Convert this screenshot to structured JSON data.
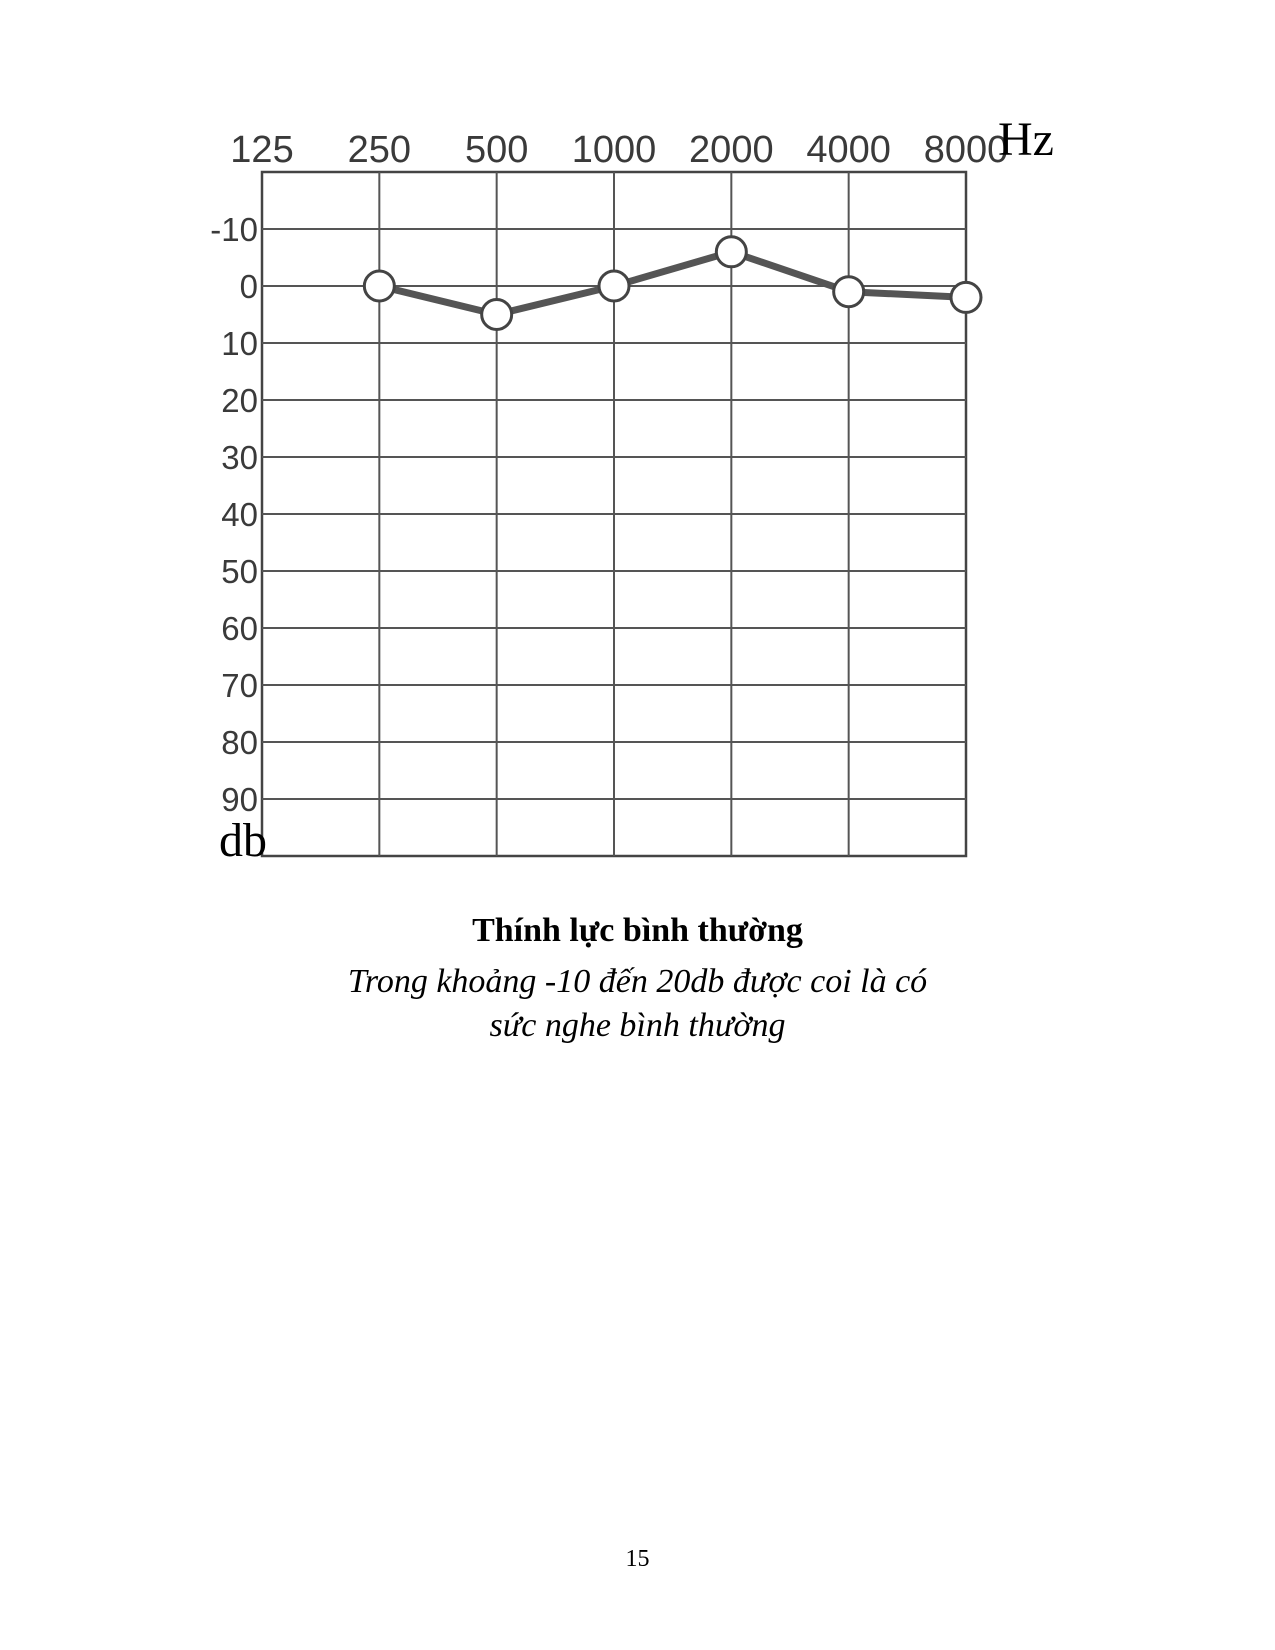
{
  "chart_data": {
    "type": "line",
    "x_unit": "Hz",
    "y_unit": "db",
    "x_ticks": [
      "125",
      "250",
      "500",
      "1000",
      "2000",
      "4000",
      "8000"
    ],
    "y_ticks": [
      "-10",
      "0",
      "10",
      "20",
      "30",
      "40",
      "50",
      "60",
      "70",
      "80",
      "90"
    ],
    "ylim": [
      -20,
      100
    ],
    "y_inverted": true,
    "grid": true,
    "series": [
      {
        "x": [
          250,
          500,
          1000,
          2000,
          4000,
          8000
        ],
        "values": [
          0,
          5,
          0,
          -6,
          1,
          2
        ],
        "marker": "open-circle",
        "color": "#555555"
      }
    ]
  },
  "caption": {
    "title": "Thính lực bình thường",
    "subtitle_line1": "Trong khoảng -10 đến 20db được coi là có",
    "subtitle_line2": "sức nghe bình thường"
  },
  "page_number": "15"
}
